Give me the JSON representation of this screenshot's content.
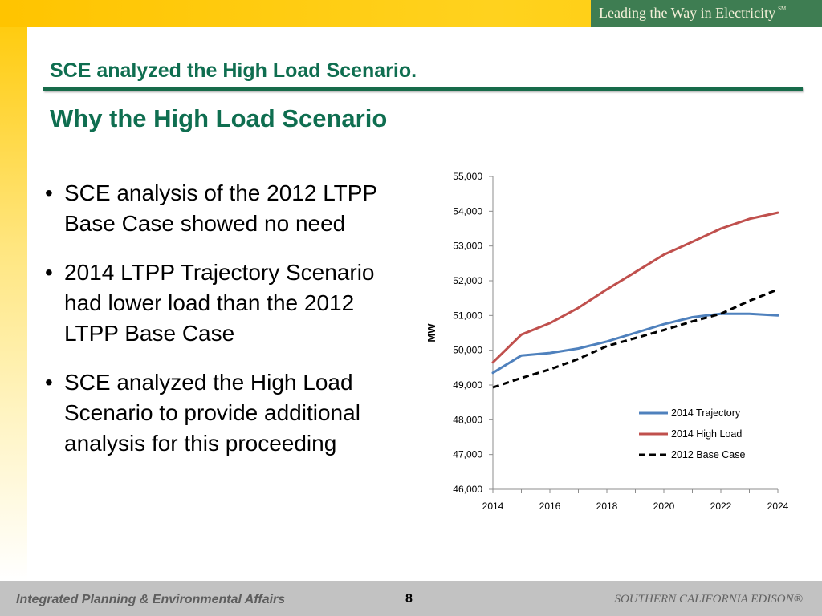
{
  "header": {
    "tagline": "Leading the Way in Electricity",
    "tagline_mark": "SM"
  },
  "slide": {
    "title": "SCE analyzed the High Load Scenario.",
    "subtitle": "Why the High Load Scenario",
    "bullet_glyph": "•",
    "bullets": [
      "SCE analysis of the 2012 LTPP Base Case showed no need",
      "2014 LTPP Trajectory Scenario had lower load than the 2012 LTPP Base Case",
      "SCE analyzed the High Load Scenario to provide additional analysis for this proceeding"
    ]
  },
  "footer": {
    "left": "Integrated Planning & Environmental Affairs",
    "page_number": "8",
    "right": "SOUTHERN CALIFORNIA EDISON®"
  },
  "colors": {
    "title_green": "#0f6e50",
    "trajectory": "#4f81bd",
    "high_load": "#c0504d",
    "base_case": "#000000"
  },
  "chart_data": {
    "type": "line",
    "ylabel": "MW",
    "xlabel": "",
    "ylim": [
      46000,
      55000
    ],
    "xlim": [
      2014,
      2024
    ],
    "y_ticks": [
      46000,
      47000,
      48000,
      49000,
      50000,
      51000,
      52000,
      53000,
      54000,
      55000
    ],
    "y_tick_labels": [
      "46,000",
      "47,000",
      "48,000",
      "49,000",
      "50,000",
      "51,000",
      "52,000",
      "53,000",
      "54,000",
      "55,000"
    ],
    "x_ticks": [
      2014,
      2016,
      2018,
      2020,
      2022,
      2024
    ],
    "x_tick_labels": [
      "2014",
      "2016",
      "2018",
      "2020",
      "2022",
      "2024"
    ],
    "x": [
      2014,
      2015,
      2016,
      2017,
      2018,
      2019,
      2020,
      2021,
      2022,
      2023,
      2024
    ],
    "grid": false,
    "legend_position": "lower-right",
    "series": [
      {
        "name": "2014 Trajectory",
        "style": "solid",
        "color": "#4f81bd",
        "values": [
          49350,
          49850,
          49920,
          50050,
          50250,
          50500,
          50750,
          50950,
          51050,
          51050,
          51000
        ]
      },
      {
        "name": "2014 High Load",
        "style": "solid",
        "color": "#c0504d",
        "values": [
          49650,
          50450,
          50780,
          51220,
          51750,
          52250,
          52750,
          53120,
          53500,
          53780,
          53960
        ]
      },
      {
        "name": "2012 Base Case",
        "style": "dashed",
        "color": "#000000",
        "values": [
          48930,
          49200,
          49450,
          49750,
          50120,
          50350,
          50580,
          50830,
          51050,
          51420,
          51750
        ]
      }
    ]
  }
}
